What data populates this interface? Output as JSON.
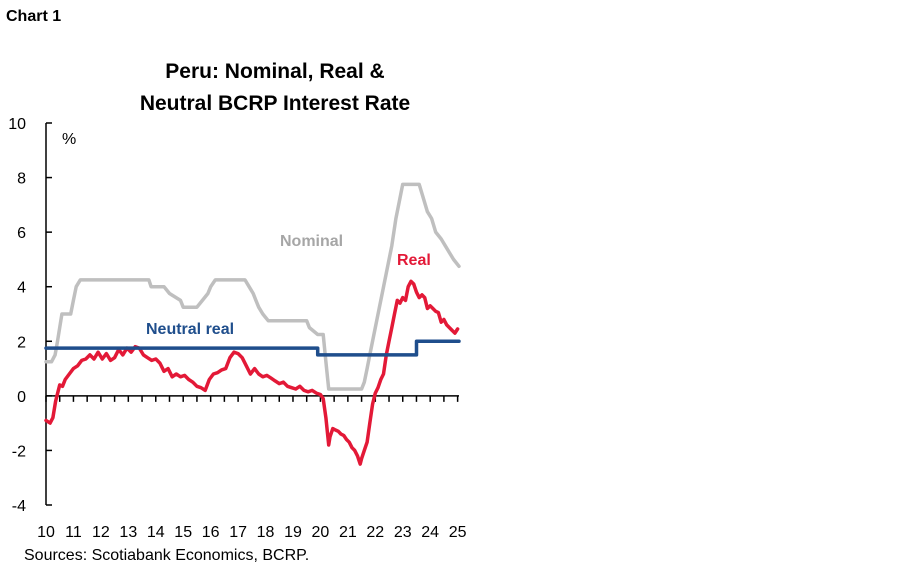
{
  "header": {
    "chart_number": "Chart 1",
    "title_line1": "Peru: Nominal, Real &",
    "title_line2": "Neutral BCRP Interest Rate"
  },
  "footer": {
    "source": "Sources: Scotiabank Economics, BCRP."
  },
  "chart_data": {
    "type": "line",
    "title": "Peru: Nominal, Real & Neutral BCRP Interest Rate",
    "ylabel": "%",
    "xlabel": "",
    "ylim": [
      -4,
      10
    ],
    "yticks": [
      10,
      8,
      6,
      4,
      2,
      0,
      -2,
      -4
    ],
    "xlim": [
      2010,
      2025.05
    ],
    "xticks": [
      2010,
      2011,
      2012,
      2013,
      2014,
      2015,
      2016,
      2017,
      2018,
      2019,
      2020,
      2021,
      2022,
      2023,
      2024,
      2025
    ],
    "xtick_labels": [
      "10",
      "11",
      "12",
      "13",
      "14",
      "15",
      "16",
      "17",
      "18",
      "19",
      "20",
      "21",
      "22",
      "23",
      "24",
      "25"
    ],
    "grid": false,
    "legend": "inline labels",
    "series": [
      {
        "name": "Nominal",
        "color": "#BFBFBF",
        "points": [
          [
            2010.0,
            1.25
          ],
          [
            2010.2,
            1.25
          ],
          [
            2010.33,
            1.5
          ],
          [
            2010.42,
            2.0
          ],
          [
            2010.5,
            2.5
          ],
          [
            2010.58,
            3.0
          ],
          [
            2010.9,
            3.0
          ],
          [
            2011.0,
            3.5
          ],
          [
            2011.1,
            4.0
          ],
          [
            2011.25,
            4.25
          ],
          [
            2012.0,
            4.25
          ],
          [
            2013.0,
            4.25
          ],
          [
            2013.75,
            4.25
          ],
          [
            2013.83,
            4.0
          ],
          [
            2014.3,
            4.0
          ],
          [
            2014.5,
            3.75
          ],
          [
            2014.9,
            3.5
          ],
          [
            2015.0,
            3.25
          ],
          [
            2015.5,
            3.25
          ],
          [
            2015.7,
            3.5
          ],
          [
            2015.9,
            3.75
          ],
          [
            2016.0,
            4.0
          ],
          [
            2016.17,
            4.25
          ],
          [
            2017.25,
            4.25
          ],
          [
            2017.4,
            4.0
          ],
          [
            2017.55,
            3.75
          ],
          [
            2017.65,
            3.5
          ],
          [
            2017.75,
            3.25
          ],
          [
            2017.9,
            3.0
          ],
          [
            2018.1,
            2.75
          ],
          [
            2019.5,
            2.75
          ],
          [
            2019.6,
            2.5
          ],
          [
            2019.9,
            2.25
          ],
          [
            2020.1,
            2.25
          ],
          [
            2020.2,
            1.25
          ],
          [
            2020.3,
            0.25
          ],
          [
            2021.5,
            0.25
          ],
          [
            2021.6,
            0.5
          ],
          [
            2021.7,
            1.0
          ],
          [
            2021.8,
            1.5
          ],
          [
            2022.0,
            2.5
          ],
          [
            2022.2,
            3.5
          ],
          [
            2022.4,
            4.5
          ],
          [
            2022.6,
            5.5
          ],
          [
            2022.75,
            6.5
          ],
          [
            2022.9,
            7.25
          ],
          [
            2023.0,
            7.75
          ],
          [
            2023.6,
            7.75
          ],
          [
            2023.75,
            7.25
          ],
          [
            2023.9,
            6.75
          ],
          [
            2024.05,
            6.5
          ],
          [
            2024.2,
            6.0
          ],
          [
            2024.4,
            5.75
          ],
          [
            2024.55,
            5.5
          ],
          [
            2024.7,
            5.25
          ],
          [
            2024.85,
            5.0
          ],
          [
            2025.05,
            4.75
          ]
        ]
      },
      {
        "name": "Real",
        "color": "#E31937",
        "points": [
          [
            2010.0,
            -0.9
          ],
          [
            2010.15,
            -1.0
          ],
          [
            2010.25,
            -0.8
          ],
          [
            2010.35,
            -0.2
          ],
          [
            2010.5,
            0.4
          ],
          [
            2010.6,
            0.35
          ],
          [
            2010.7,
            0.6
          ],
          [
            2010.85,
            0.8
          ],
          [
            2011.0,
            1.0
          ],
          [
            2011.15,
            1.1
          ],
          [
            2011.3,
            1.3
          ],
          [
            2011.45,
            1.35
          ],
          [
            2011.6,
            1.5
          ],
          [
            2011.75,
            1.35
          ],
          [
            2011.9,
            1.6
          ],
          [
            2012.05,
            1.35
          ],
          [
            2012.2,
            1.55
          ],
          [
            2012.35,
            1.3
          ],
          [
            2012.5,
            1.4
          ],
          [
            2012.65,
            1.7
          ],
          [
            2012.8,
            1.5
          ],
          [
            2012.95,
            1.75
          ],
          [
            2013.1,
            1.6
          ],
          [
            2013.25,
            1.8
          ],
          [
            2013.4,
            1.75
          ],
          [
            2013.55,
            1.5
          ],
          [
            2013.7,
            1.4
          ],
          [
            2013.85,
            1.3
          ],
          [
            2014.0,
            1.35
          ],
          [
            2014.15,
            1.2
          ],
          [
            2014.3,
            0.9
          ],
          [
            2014.45,
            1.0
          ],
          [
            2014.6,
            0.7
          ],
          [
            2014.75,
            0.8
          ],
          [
            2014.9,
            0.7
          ],
          [
            2015.05,
            0.75
          ],
          [
            2015.2,
            0.6
          ],
          [
            2015.35,
            0.5
          ],
          [
            2015.5,
            0.35
          ],
          [
            2015.65,
            0.3
          ],
          [
            2015.8,
            0.2
          ],
          [
            2015.95,
            0.6
          ],
          [
            2016.1,
            0.8
          ],
          [
            2016.25,
            0.85
          ],
          [
            2016.4,
            0.95
          ],
          [
            2016.55,
            1.0
          ],
          [
            2016.7,
            1.4
          ],
          [
            2016.85,
            1.6
          ],
          [
            2017.0,
            1.55
          ],
          [
            2017.15,
            1.4
          ],
          [
            2017.3,
            1.1
          ],
          [
            2017.45,
            0.8
          ],
          [
            2017.6,
            1.0
          ],
          [
            2017.75,
            0.8
          ],
          [
            2017.9,
            0.7
          ],
          [
            2018.05,
            0.75
          ],
          [
            2018.2,
            0.65
          ],
          [
            2018.35,
            0.55
          ],
          [
            2018.5,
            0.45
          ],
          [
            2018.65,
            0.5
          ],
          [
            2018.8,
            0.35
          ],
          [
            2018.95,
            0.3
          ],
          [
            2019.1,
            0.25
          ],
          [
            2019.25,
            0.35
          ],
          [
            2019.4,
            0.2
          ],
          [
            2019.55,
            0.15
          ],
          [
            2019.7,
            0.2
          ],
          [
            2019.85,
            0.1
          ],
          [
            2020.0,
            0.05
          ],
          [
            2020.1,
            -0.1
          ],
          [
            2020.2,
            -0.8
          ],
          [
            2020.3,
            -1.8
          ],
          [
            2020.35,
            -1.5
          ],
          [
            2020.45,
            -1.2
          ],
          [
            2020.55,
            -1.25
          ],
          [
            2020.65,
            -1.3
          ],
          [
            2020.75,
            -1.4
          ],
          [
            2020.85,
            -1.45
          ],
          [
            2020.95,
            -1.6
          ],
          [
            2021.05,
            -1.7
          ],
          [
            2021.15,
            -1.9
          ],
          [
            2021.25,
            -2.0
          ],
          [
            2021.35,
            -2.2
          ],
          [
            2021.45,
            -2.5
          ],
          [
            2021.5,
            -2.3
          ],
          [
            2021.6,
            -2.0
          ],
          [
            2021.7,
            -1.7
          ],
          [
            2021.8,
            -1.0
          ],
          [
            2021.9,
            -0.3
          ],
          [
            2022.0,
            0.1
          ],
          [
            2022.1,
            0.3
          ],
          [
            2022.2,
            0.6
          ],
          [
            2022.3,
            0.8
          ],
          [
            2022.4,
            1.5
          ],
          [
            2022.5,
            2.0
          ],
          [
            2022.6,
            2.5
          ],
          [
            2022.7,
            3.0
          ],
          [
            2022.8,
            3.5
          ],
          [
            2022.9,
            3.4
          ],
          [
            2023.0,
            3.6
          ],
          [
            2023.1,
            3.5
          ],
          [
            2023.2,
            4.0
          ],
          [
            2023.3,
            4.2
          ],
          [
            2023.4,
            4.1
          ],
          [
            2023.5,
            3.8
          ],
          [
            2023.6,
            3.6
          ],
          [
            2023.7,
            3.7
          ],
          [
            2023.8,
            3.6
          ],
          [
            2023.9,
            3.2
          ],
          [
            2024.0,
            3.3
          ],
          [
            2024.1,
            3.2
          ],
          [
            2024.2,
            3.1
          ],
          [
            2024.3,
            3.05
          ],
          [
            2024.4,
            2.7
          ],
          [
            2024.5,
            2.8
          ],
          [
            2024.6,
            2.6
          ],
          [
            2024.7,
            2.5
          ],
          [
            2024.8,
            2.4
          ],
          [
            2024.9,
            2.3
          ],
          [
            2025.0,
            2.45
          ]
        ]
      },
      {
        "name": "Neutral real",
        "color": "#1F4E8C",
        "points": [
          [
            2010.0,
            1.75
          ],
          [
            2019.9,
            1.75
          ],
          [
            2019.9,
            1.5
          ],
          [
            2023.5,
            1.5
          ],
          [
            2023.5,
            2.0
          ],
          [
            2025.05,
            2.0
          ]
        ]
      }
    ],
    "annotations": [
      {
        "text": "Nominal",
        "series": "Nominal",
        "color": "#A6A6A6"
      },
      {
        "text": "Real",
        "series": "Real",
        "color": "#E31937"
      },
      {
        "text": "Neutral real",
        "series": "Neutral real",
        "color": "#1F4E8C"
      },
      {
        "text": "%",
        "color": "#000000"
      }
    ]
  }
}
